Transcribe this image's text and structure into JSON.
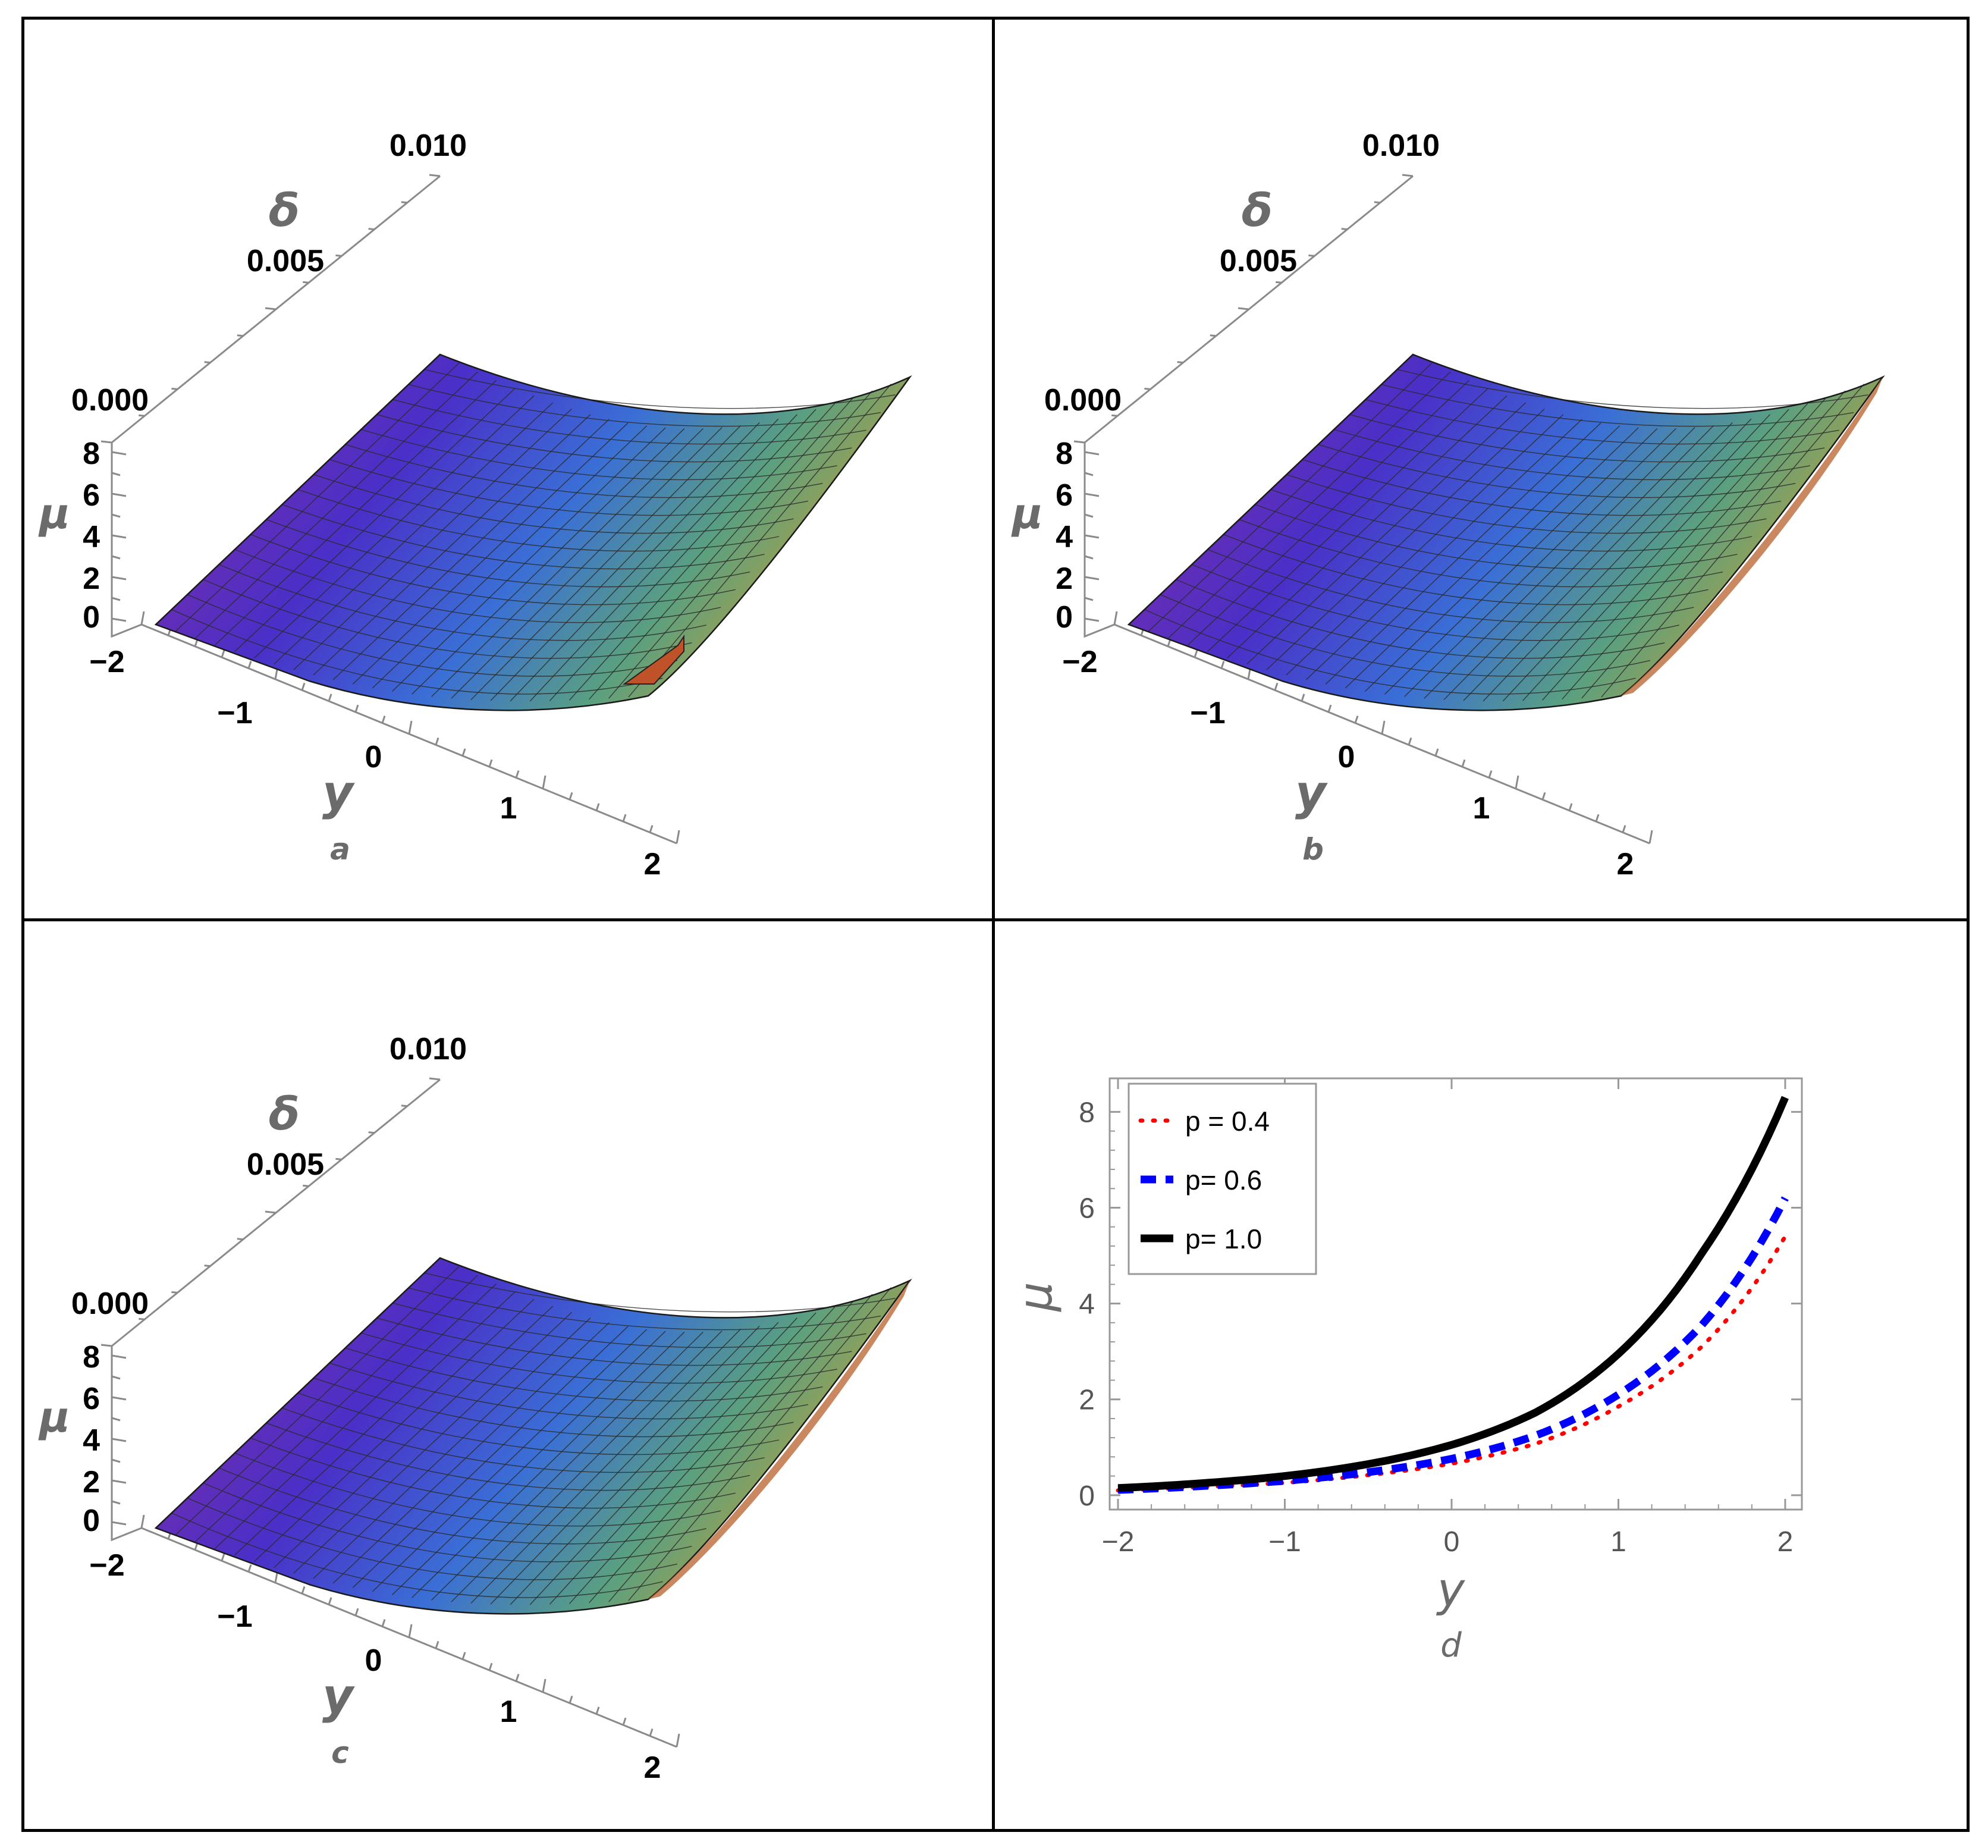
{
  "panels": [
    {
      "id": "a",
      "label": "a",
      "y_title": "y",
      "delta_title": "δ",
      "mu_title": "μ",
      "y_ticks": [
        "−2",
        "−1",
        "0",
        "1",
        "2"
      ],
      "delta_ticks": [
        "0.000",
        "0.005",
        "0.010"
      ],
      "mu_ticks": [
        "0",
        "2",
        "4",
        "6",
        "8"
      ]
    },
    {
      "id": "b",
      "label": "b",
      "y_title": "y",
      "delta_title": "δ",
      "mu_title": "μ",
      "y_ticks": [
        "−2",
        "−1",
        "0",
        "1",
        "2"
      ],
      "delta_ticks": [
        "0.000",
        "0.005",
        "0.010"
      ],
      "mu_ticks": [
        "0",
        "2",
        "4",
        "6",
        "8"
      ]
    },
    {
      "id": "c",
      "label": "c",
      "y_title": "y",
      "delta_title": "δ",
      "mu_title": "μ",
      "y_ticks": [
        "−2",
        "−1",
        "0",
        "1",
        "2"
      ],
      "delta_ticks": [
        "0.000",
        "0.005",
        "0.010"
      ],
      "mu_ticks": [
        "0",
        "2",
        "4",
        "6",
        "8"
      ]
    }
  ],
  "chart_data": [
    {
      "type": "surface",
      "panel": "a",
      "x_range": [
        -2,
        2
      ],
      "delta_range": [
        0,
        0.01
      ],
      "z_range": [
        0,
        8
      ],
      "colormap": [
        "#8a2d9e",
        "#4a2fc8",
        "#3a6fd6",
        "#5aa080",
        "#b5a040"
      ]
    },
    {
      "type": "surface",
      "panel": "b",
      "x_range": [
        -2,
        2
      ],
      "delta_range": [
        0,
        0.01
      ],
      "z_range": [
        0,
        8
      ],
      "colormap": [
        "#8a2d9e",
        "#4a2fc8",
        "#3a6fd6",
        "#5aa080",
        "#b5a040"
      ]
    },
    {
      "type": "surface",
      "panel": "c",
      "x_range": [
        -2,
        2
      ],
      "delta_range": [
        0,
        0.01
      ],
      "z_range": [
        0,
        8
      ],
      "colormap": [
        "#8a2d9e",
        "#4a2fc8",
        "#3a6fd6",
        "#5aa080",
        "#b5a040"
      ]
    },
    {
      "type": "line",
      "panel": "d",
      "label": "d",
      "xlabel": "y",
      "ylabel": "μ",
      "xlim": [
        -2.05,
        2.1
      ],
      "ylim": [
        -0.3,
        8.7
      ],
      "xticks": [
        -2,
        -1,
        0,
        1,
        2
      ],
      "yticks": [
        0,
        2,
        4,
        6,
        8
      ],
      "xtick_labels": [
        "−2",
        "−1",
        "0",
        "1",
        "2"
      ],
      "ytick_labels": [
        "0",
        "2",
        "4",
        "6",
        "8"
      ],
      "x": [
        -2.0,
        -1.5,
        -1.0,
        -0.5,
        0.0,
        0.5,
        1.0,
        1.5,
        2.0
      ],
      "series": [
        {
          "name": "p = 0.4",
          "color": "#ff0000",
          "style": "dotted",
          "values": [
            0.1,
            0.17,
            0.26,
            0.42,
            0.66,
            1.07,
            1.85,
            3.1,
            5.4
          ]
        },
        {
          "name": "p= 0.6",
          "color": "#0000ff",
          "style": "dashed",
          "values": [
            0.11,
            0.19,
            0.3,
            0.48,
            0.76,
            1.24,
            2.1,
            3.55,
            6.2
          ]
        },
        {
          "name": "p= 1.0",
          "color": "#000000",
          "style": "solid",
          "values": [
            0.15,
            0.25,
            0.4,
            0.65,
            1.05,
            1.72,
            2.95,
            5.05,
            8.3
          ]
        }
      ],
      "legend_position": "top-left",
      "grid": false
    }
  ]
}
